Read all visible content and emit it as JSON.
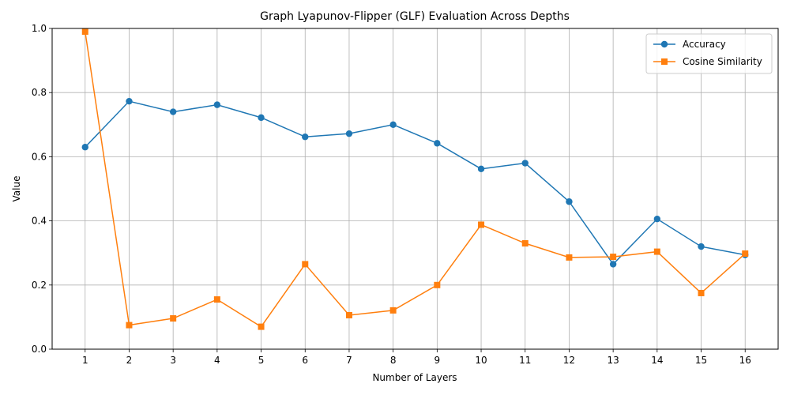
{
  "chart_data": {
    "type": "line",
    "title": "Graph Lyapunov-Flipper (GLF) Evaluation Across Depths",
    "xlabel": "Number of Layers",
    "ylabel": "Value",
    "x": [
      1,
      2,
      3,
      4,
      5,
      6,
      7,
      8,
      9,
      10,
      11,
      12,
      13,
      14,
      15,
      16
    ],
    "xlim": [
      0.25,
      16.75
    ],
    "ylim": [
      0,
      1
    ],
    "yticks": [
      0.0,
      0.2,
      0.4,
      0.6,
      0.8,
      1.0
    ],
    "grid": true,
    "legend_position": "top-right",
    "series": [
      {
        "name": "Accuracy",
        "color": "#1f77b4",
        "marker": "circle",
        "values": [
          0.63,
          0.773,
          0.74,
          0.762,
          0.722,
          0.662,
          0.672,
          0.7,
          0.642,
          0.562,
          0.58,
          0.46,
          0.265,
          0.406,
          0.32,
          0.294
        ]
      },
      {
        "name": "Cosine Similarity",
        "color": "#ff7f0e",
        "marker": "square",
        "values": [
          0.99,
          0.075,
          0.096,
          0.155,
          0.07,
          0.265,
          0.106,
          0.121,
          0.2,
          0.388,
          0.33,
          0.286,
          0.288,
          0.304,
          0.175,
          0.298
        ]
      }
    ]
  }
}
